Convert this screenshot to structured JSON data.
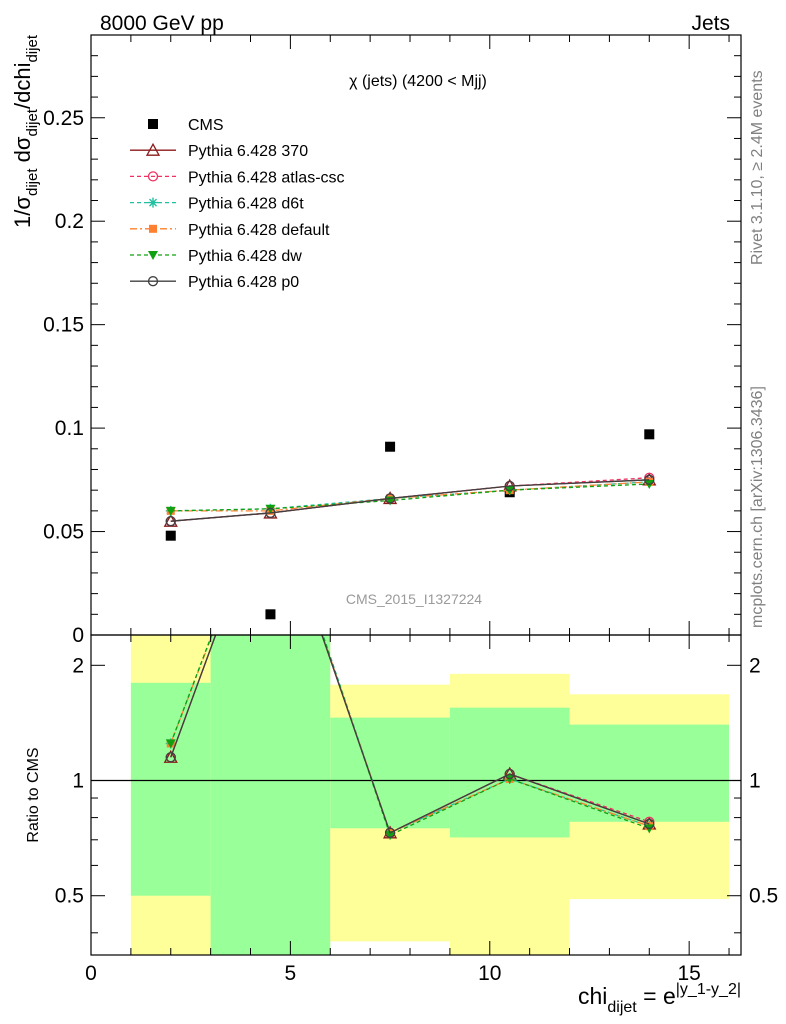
{
  "header": {
    "left": "8000 GeV pp",
    "right": "Jets"
  },
  "side": {
    "events": "Rivet 3.1.10, ≥ 2.4M events",
    "source": "mcplots.cern.ch [arXiv:1306.3436]"
  },
  "plot_title": "χ (jets) (4200 < Mjj)",
  "watermark": "CMS_2015_I1327224",
  "ylabel_main": "1/σdijet dσdijet/dchidijet",
  "ylabel_ratio": "Ratio to CMS",
  "xlabel": "chidijet = e|y_1-y_2|",
  "colors": {
    "cms": "#000000",
    "p370": "#8b1a1a",
    "atlascsc": "#f03060",
    "d6t": "#20c0a0",
    "default": "#ff8030",
    "dw": "#10a010",
    "p0": "#404040",
    "band_inner": "#99ff99",
    "band_outer": "#ffff99"
  },
  "chart_data": [
    {
      "type": "scatter",
      "panel": "main",
      "x_ticks": [
        0,
        5,
        10,
        15
      ],
      "y_ticks": [
        "0",
        "0.05",
        "0.1",
        "0.15",
        "0.2",
        "0.25"
      ],
      "xlim": [
        0,
        16.3
      ],
      "ylim": [
        0,
        0.29
      ],
      "grid": false,
      "legend_position": "top-left",
      "x": [
        2,
        4.5,
        7.5,
        10.5,
        14
      ],
      "series": [
        {
          "name": "CMS",
          "marker": "square",
          "style": "none",
          "x": [
            2,
            4.5,
            7.5,
            10.5,
            14
          ],
          "values": [
            0.048,
            0.01,
            0.091,
            0.069,
            0.097
          ]
        },
        {
          "name": "Pythia 6.428 370",
          "marker": "triangle-open",
          "style": "solid",
          "values": [
            0.055,
            0.059,
            0.066,
            0.072,
            0.075
          ]
        },
        {
          "name": "Pythia 6.428 atlas-csc",
          "marker": "circle-open",
          "style": "dashed",
          "values": [
            0.055,
            0.059,
            0.066,
            0.072,
            0.076
          ]
        },
        {
          "name": "Pythia 6.428 d6t",
          "marker": "star",
          "style": "dashed",
          "values": [
            0.06,
            0.061,
            0.066,
            0.07,
            0.074
          ]
        },
        {
          "name": "Pythia 6.428 default",
          "marker": "square-filled",
          "style": "dashdot",
          "values": [
            0.06,
            0.06,
            0.066,
            0.07,
            0.074
          ]
        },
        {
          "name": "Pythia 6.428 dw",
          "marker": "triangle-down",
          "style": "dashed",
          "values": [
            0.06,
            0.061,
            0.065,
            0.07,
            0.073
          ]
        },
        {
          "name": "Pythia 6.428 p0",
          "marker": "circle-open",
          "style": "solid",
          "values": [
            0.055,
            0.059,
            0.066,
            0.072,
            0.075
          ]
        }
      ]
    },
    {
      "type": "line",
      "panel": "ratio",
      "x_ticks": [
        0,
        5,
        10,
        15
      ],
      "y_ticks": [
        "0.5",
        "1",
        "2"
      ],
      "y_scale": "log",
      "xlim": [
        0,
        16.3
      ],
      "ylim": [
        0.35,
        2.4
      ],
      "reference_line": 1,
      "bands": [
        {
          "xlow": 1,
          "xhigh": 3,
          "inner": [
            0.5,
            1.8
          ],
          "outer": [
            0.35,
            2.4
          ]
        },
        {
          "xlow": 3,
          "xhigh": 6,
          "inner": [
            0.35,
            2.4
          ],
          "outer": [
            0.35,
            2.4
          ]
        },
        {
          "xlow": 6,
          "xhigh": 9,
          "inner": [
            0.75,
            1.46
          ],
          "outer": [
            0.38,
            1.78
          ]
        },
        {
          "xlow": 9,
          "xhigh": 12,
          "inner": [
            0.71,
            1.55
          ],
          "outer": [
            0.35,
            1.9
          ]
        },
        {
          "xlow": 12,
          "xhigh": 16,
          "inner": [
            0.78,
            1.4
          ],
          "outer": [
            0.49,
            1.68
          ]
        }
      ],
      "x": [
        2,
        4.5,
        7.5,
        10.5,
        14
      ],
      "series": [
        {
          "name": "Pythia 6.428 370",
          "values": [
            1.15,
            5.9,
            0.73,
            1.04,
            0.77
          ]
        },
        {
          "name": "Pythia 6.428 atlas-csc",
          "values": [
            1.15,
            5.9,
            0.73,
            1.04,
            0.78
          ]
        },
        {
          "name": "Pythia 6.428 d6t",
          "values": [
            1.25,
            6.1,
            0.73,
            1.01,
            0.76
          ]
        },
        {
          "name": "Pythia 6.428 default",
          "values": [
            1.25,
            6.0,
            0.73,
            1.01,
            0.76
          ]
        },
        {
          "name": "Pythia 6.428 dw",
          "values": [
            1.25,
            6.1,
            0.72,
            1.01,
            0.75
          ]
        },
        {
          "name": "Pythia 6.428 p0",
          "values": [
            1.15,
            5.9,
            0.73,
            1.04,
            0.77
          ]
        }
      ]
    }
  ]
}
